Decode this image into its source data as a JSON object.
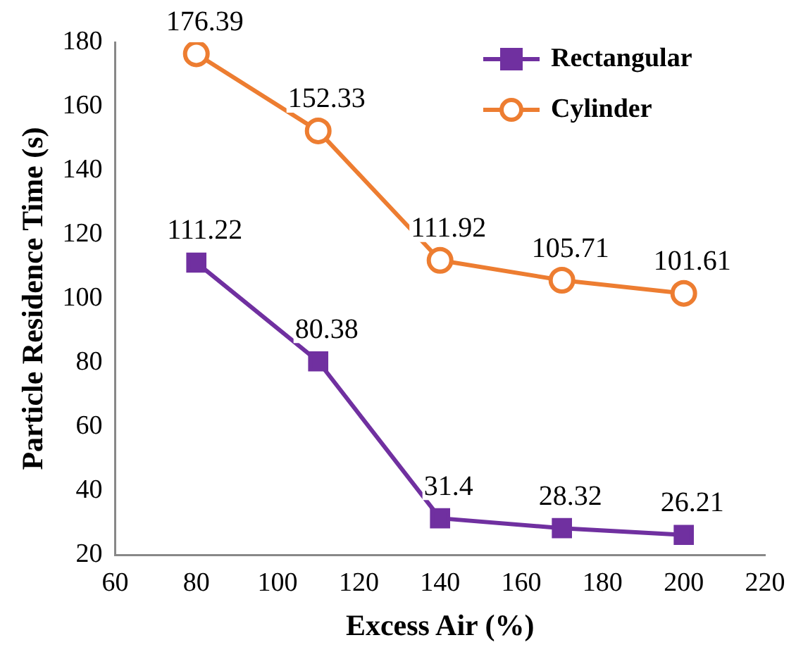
{
  "chart_data": {
    "type": "line",
    "xlabel": "Excess Air (%)",
    "ylabel": "Particle Residence Time (s)",
    "x": [
      80,
      110,
      140,
      170,
      200
    ],
    "series": [
      {
        "name": "Rectangular",
        "color": "#7030a0",
        "marker": "square",
        "values": [
          111.22,
          80.38,
          31.4,
          28.32,
          26.21
        ]
      },
      {
        "name": "Cylinder",
        "color": "#ed7d31",
        "marker": "circle",
        "values": [
          176.39,
          152.33,
          111.92,
          105.71,
          101.61
        ]
      }
    ],
    "xlim": [
      60,
      220
    ],
    "xticks": [
      60,
      80,
      100,
      120,
      140,
      160,
      180,
      200,
      220
    ],
    "ylim": [
      20,
      180
    ],
    "yticks": [
      20,
      40,
      60,
      80,
      100,
      120,
      140,
      160,
      180
    ],
    "grid": false,
    "legend": "top right",
    "data_labels": true
  }
}
